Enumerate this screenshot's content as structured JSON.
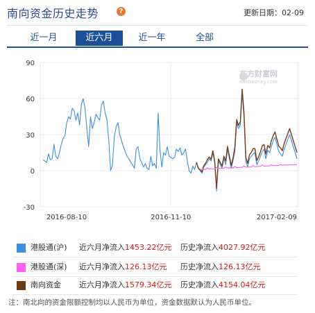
{
  "header": {
    "title": "南向资金历史走势",
    "help_glyph": "?",
    "update_label": "更新日期：",
    "update_value": "02-09"
  },
  "tabs": [
    {
      "label": "近一月",
      "active": false
    },
    {
      "label": "近六月",
      "active": true
    },
    {
      "label": "近一年",
      "active": false
    },
    {
      "label": "全部",
      "active": false
    }
  ],
  "watermark": {
    "cn": "东方财富网",
    "en": "eastmoney.com"
  },
  "chart_data": {
    "type": "line",
    "title": "",
    "xlabel": "",
    "ylabel": "",
    "ylim": [
      -30,
      90
    ],
    "yticks": [
      -30,
      0,
      30,
      60,
      90
    ],
    "xticks": [
      "2016-08-10",
      "2016-11-10",
      "2017-02-09"
    ],
    "grid": true,
    "series": [
      {
        "name": "港股通(沪)",
        "color": "#3a8fe0",
        "values": [
          9,
          8,
          7,
          14,
          9,
          10,
          22,
          12,
          10,
          15,
          22,
          27,
          29,
          40,
          45,
          43,
          52,
          50,
          42,
          48,
          38,
          55,
          60,
          52,
          35,
          20,
          45,
          35,
          40,
          47,
          44,
          42,
          55,
          58,
          48,
          42,
          25,
          0,
          5,
          28,
          36,
          40,
          30,
          25,
          20,
          16,
          12,
          10,
          7,
          5,
          2,
          18,
          20,
          10,
          7,
          3,
          6,
          2,
          1,
          12,
          4,
          6,
          2,
          48,
          18,
          3,
          15,
          13,
          20,
          12,
          11,
          10,
          11,
          18,
          16,
          19,
          13,
          15,
          18,
          8,
          0,
          -2,
          4,
          1,
          7,
          2,
          0,
          -2,
          3,
          5,
          7,
          10,
          8,
          15,
          6,
          -17,
          8,
          5,
          2,
          10,
          5,
          18,
          10,
          2,
          8,
          16,
          40,
          35,
          38,
          65,
          45,
          8,
          3,
          10,
          12,
          14,
          15,
          5,
          8,
          12,
          16,
          18,
          10,
          17,
          15,
          20,
          25,
          28,
          22,
          16,
          14,
          12,
          18,
          22,
          26,
          30,
          25,
          20,
          15,
          10
        ]
      },
      {
        "name": "港股通(深)",
        "color": "#ff5ff3",
        "values": [
          null,
          null,
          null,
          null,
          null,
          null,
          null,
          null,
          null,
          null,
          null,
          null,
          null,
          null,
          null,
          null,
          null,
          null,
          null,
          null,
          null,
          null,
          null,
          null,
          null,
          null,
          null,
          null,
          null,
          null,
          null,
          null,
          null,
          null,
          null,
          null,
          null,
          null,
          null,
          null,
          null,
          null,
          null,
          null,
          null,
          null,
          null,
          null,
          null,
          null,
          null,
          null,
          null,
          null,
          null,
          null,
          null,
          null,
          null,
          null,
          null,
          null,
          null,
          null,
          null,
          null,
          null,
          null,
          null,
          null,
          null,
          null,
          null,
          null,
          null,
          null,
          null,
          null,
          null,
          null,
          null,
          null,
          null,
          null,
          null,
          null,
          null,
          null,
          null,
          null,
          null,
          null,
          null,
          null,
          null,
          null,
          null,
          null,
          null,
          null,
          null,
          null,
          null,
          null,
          null,
          null,
          null,
          null,
          null,
          null,
          null,
          null,
          null,
          null,
          null,
          null,
          null,
          null,
          null,
          null,
          null,
          null,
          null,
          null,
          null,
          null,
          null,
          null,
          null,
          null,
          null,
          null,
          null,
          null,
          null,
          null,
          null,
          null,
          null,
          null,
          null,
          null,
          null,
          null,
          null,
          null,
          null,
          null,
          null,
          null,
          null,
          null,
          null,
          null,
          null,
          null,
          null,
          null,
          null,
          null,
          null,
          null,
          null,
          null,
          null,
          null,
          null,
          null,
          null,
          null,
          null,
          null,
          null,
          null,
          null,
          null,
          null,
          null,
          null,
          null,
          null,
          null,
          null,
          null,
          null,
          null,
          null,
          null,
          null,
          null,
          null,
          null,
          null,
          null,
          null,
          null,
          null,
          null,
          null,
          null,
          null,
          null,
          null,
          null,
          null,
          null,
          null,
          null,
          null,
          null,
          null,
          null,
          null,
          null,
          null,
          null,
          null,
          null,
          null,
          null,
          null,
          null,
          null,
          null,
          null,
          null,
          null,
          null,
          null,
          null,
          null,
          null,
          null,
          null,
          null,
          null,
          null,
          null,
          null,
          null,
          null,
          null,
          null,
          null
        ]
      },
      {
        "name": "南向资金",
        "color": "#7a3b14",
        "values": []
      }
    ]
  },
  "legend": [
    {
      "color": "#3a8fe0",
      "name": "港股通(沪)",
      "six_label": "近六月净流入",
      "six_value": "1453.22亿元",
      "hist_label": "历史净流入",
      "hist_value": "4027.92亿元"
    },
    {
      "color": "#ff5ff3",
      "name": "港股通(深)",
      "six_label": "近六月净流入",
      "six_value": "126.13亿元",
      "hist_label": "历史净流入",
      "hist_value": "126.13亿元"
    },
    {
      "color": "#6b3a12",
      "name": "南向资金",
      "six_label": "近六月净流入",
      "six_value": "1579.34亿元",
      "hist_label": "历史净流入",
      "hist_value": "4154.04亿元"
    }
  ],
  "footnote": "注：南北向的资金限额控制均以人民币为单位，资金数据默认为人民币单位。"
}
